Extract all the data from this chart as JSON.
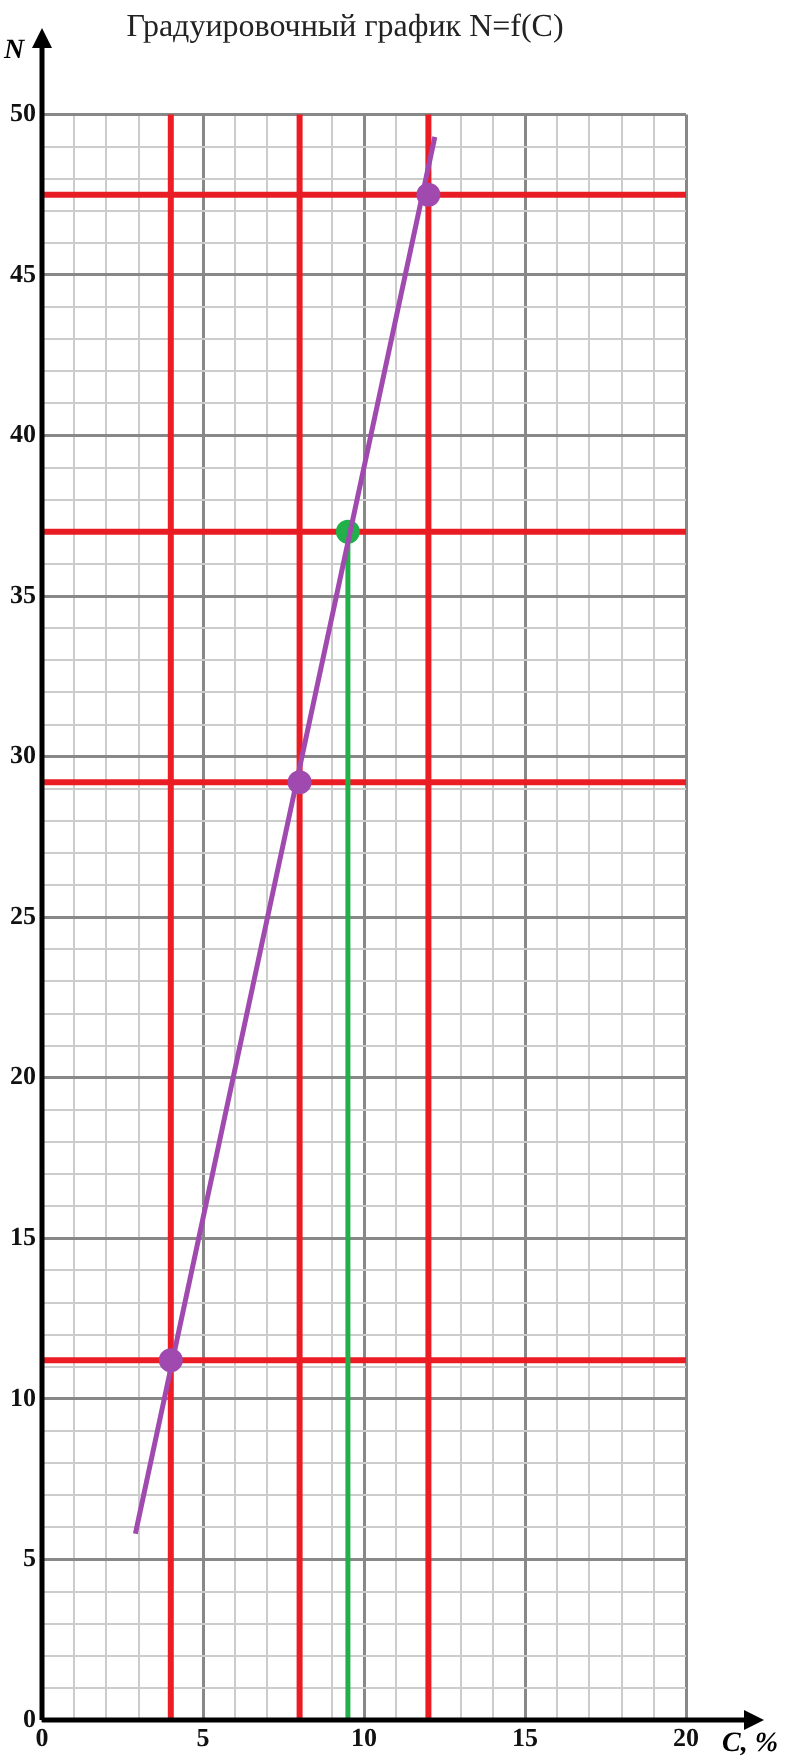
{
  "chart_data": {
    "type": "line",
    "title": "Градуировочный график N=f(C)",
    "xlabel": "C, %",
    "ylabel": "N",
    "xlim": [
      0,
      20
    ],
    "ylim": [
      0,
      50
    ],
    "xticks": [
      0,
      {
        "value": 1,
        "label": null
      },
      {
        "value": 2,
        "label": null
      },
      {
        "value": 3,
        "label": null
      },
      {
        "value": 4,
        "label": null
      },
      5,
      {
        "value": 6,
        "label": null
      },
      {
        "value": 7,
        "label": null
      },
      {
        "value": 8,
        "label": null
      },
      {
        "value": 9,
        "label": null
      },
      10,
      {
        "value": 11,
        "label": null
      },
      {
        "value": 12,
        "label": null
      },
      {
        "value": 13,
        "label": null
      },
      {
        "value": 14,
        "label": null
      },
      15,
      {
        "value": 16,
        "label": null
      },
      {
        "value": 17,
        "label": null
      },
      {
        "value": 18,
        "label": null
      },
      {
        "value": 19,
        "label": null
      },
      20
    ],
    "yticks": [
      0,
      {
        "value": 1,
        "label": null
      },
      {
        "value": 2,
        "label": null
      },
      {
        "value": 3,
        "label": null
      },
      {
        "value": 4,
        "label": null
      },
      5,
      {
        "value": 6,
        "label": null
      },
      {
        "value": 7,
        "label": null
      },
      {
        "value": 8,
        "label": null
      },
      {
        "value": 9,
        "label": null
      },
      10,
      {
        "value": 11,
        "label": null
      },
      {
        "value": 12,
        "label": null
      },
      {
        "value": 13,
        "label": null
      },
      {
        "value": 14,
        "label": null
      },
      15,
      {
        "value": 16,
        "label": null
      },
      {
        "value": 17,
        "label": null
      },
      {
        "value": 18,
        "label": null
      },
      {
        "value": 19,
        "label": null
      },
      20,
      {
        "value": 21,
        "label": null
      },
      {
        "value": 22,
        "label": null
      },
      {
        "value": 23,
        "label": null
      },
      {
        "value": 24,
        "label": null
      },
      25,
      {
        "value": 26,
        "label": null
      },
      {
        "value": 27,
        "label": null
      },
      {
        "value": 28,
        "label": null
      },
      {
        "value": 29,
        "label": null
      },
      30,
      {
        "value": 31,
        "label": null
      },
      {
        "value": 32,
        "label": null
      },
      {
        "value": 33,
        "label": null
      },
      {
        "value": 34,
        "label": null
      },
      35,
      {
        "value": 36,
        "label": null
      },
      {
        "value": 37,
        "label": null
      },
      {
        "value": 38,
        "label": null
      },
      {
        "value": 39,
        "label": null
      },
      40,
      {
        "value": 41,
        "label": null
      },
      {
        "value": 42,
        "label": null
      },
      {
        "value": 43,
        "label": null
      },
      {
        "value": 44,
        "label": null
      },
      45,
      {
        "value": 46,
        "label": null
      },
      {
        "value": 47,
        "label": null
      },
      {
        "value": 48,
        "label": null
      },
      {
        "value": 49,
        "label": null
      },
      50
    ],
    "grid": true,
    "legend": false,
    "series": [
      {
        "type": "line",
        "color": "#a04ab0",
        "x": [
          2.9,
          12.2
        ],
        "values": [
          5.8,
          49.3
        ],
        "marker": "none"
      },
      {
        "type": "scatter",
        "color": "#a04ab0",
        "x": [
          4,
          8,
          12
        ],
        "values": [
          11.2,
          29.2,
          47.5
        ],
        "marker": "circle"
      },
      {
        "type": "line",
        "color": "#22b04a",
        "x": [
          9.5,
          9.5
        ],
        "values": [
          0,
          37
        ],
        "marker": "none"
      },
      {
        "type": "scatter",
        "color": "#22b04a",
        "x": [
          9.5
        ],
        "values": [
          37
        ],
        "marker": "circle"
      }
    ],
    "ref_lines": [
      {
        "axis": "x",
        "value": 4,
        "color": "#ee1c24"
      },
      {
        "axis": "x",
        "value": 8,
        "color": "#ed1c24"
      },
      {
        "axis": "x",
        "value": 12,
        "color": "#ec1c24"
      },
      {
        "axis": "y",
        "value": 11.2,
        "color": "#eb1c24"
      },
      {
        "axis": "y",
        "value": 29.2,
        "color": "#ea1c24"
      },
      {
        "axis": "y",
        "value": 37,
        "color": "#e91c24"
      },
      {
        "axis": "y",
        "value": 47.5,
        "color": "#e81c24"
      }
    ]
  }
}
